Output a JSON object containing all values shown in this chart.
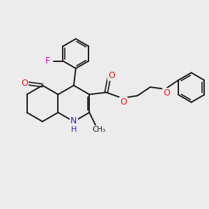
{
  "bg_color": "#ececec",
  "bond_color": "#1a1a1a",
  "atom_colors": {
    "O": "#ee1111",
    "N": "#2222cc",
    "F": "#cc00cc",
    "C": "#1a1a1a"
  },
  "figsize": [
    3.0,
    3.0
  ],
  "dpi": 100,
  "lw": 1.4,
  "lw2": 1.2
}
